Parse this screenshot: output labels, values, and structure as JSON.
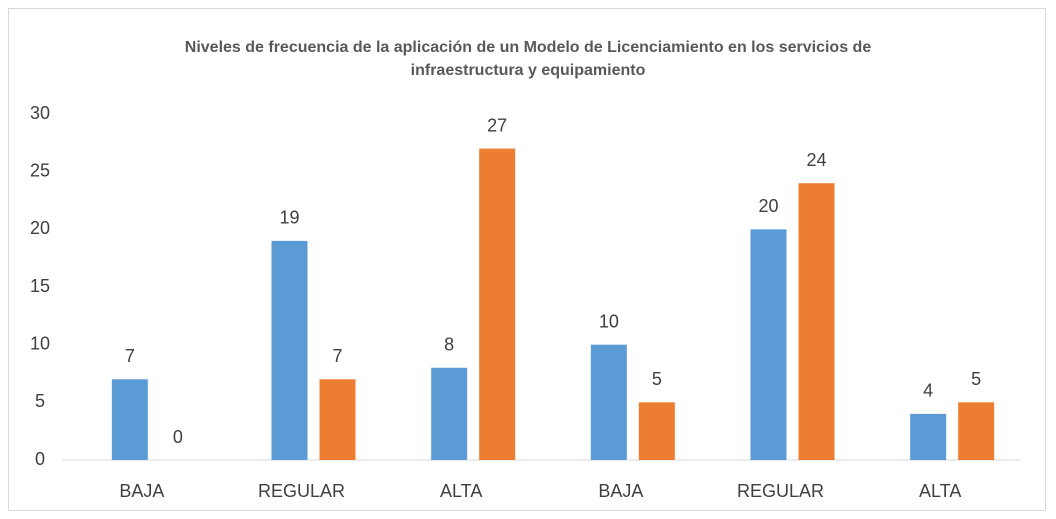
{
  "chart_data": {
    "type": "bar",
    "title": "Niveles de frecuencia de la aplicación de un Modelo de Licenciamiento en los servicios de infraestructura y equipamiento",
    "categories": [
      "BAJA",
      "REGULAR",
      "ALTA",
      "BAJA",
      "REGULAR",
      "ALTA"
    ],
    "series": [
      {
        "color": "#5b9bd5",
        "values": [
          7,
          19,
          8,
          10,
          20,
          4
        ]
      },
      {
        "color": "#ed7d31",
        "values": [
          0,
          7,
          27,
          5,
          24,
          5
        ]
      }
    ],
    "ylim": [
      0,
      30
    ],
    "yticks": [
      0,
      5,
      10,
      15,
      20,
      25,
      30
    ],
    "grid": false
  }
}
